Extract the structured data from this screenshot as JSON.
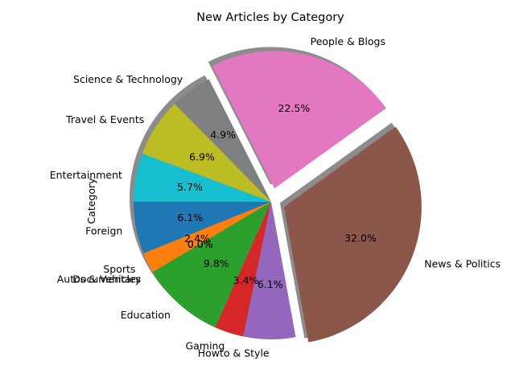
{
  "chart_data": {
    "type": "pie",
    "title": "New Articles by Category",
    "ylabel": "Category",
    "slices": [
      {
        "label": "Foreign",
        "value": 6.1,
        "pct_label": "6.1%",
        "color": "#1f77b4",
        "explode": 0
      },
      {
        "label": "Sports",
        "value": 2.4,
        "pct_label": "2.4%",
        "color": "#ff7f0e",
        "explode": 0
      },
      {
        "label": "Autos & Vehicles",
        "value": 0.0,
        "pct_label": "0.0%",
        "color": "#ff7f0e",
        "explode": 0
      },
      {
        "label": "Documentary",
        "value": 0.0,
        "pct_label": "0.0%",
        "color": "#1f77b4",
        "explode": 0
      },
      {
        "label": "Education",
        "value": 9.8,
        "pct_label": "9.8%",
        "color": "#2ca02c",
        "explode": 0
      },
      {
        "label": "Gaming",
        "value": 3.4,
        "pct_label": "3.4%",
        "color": "#d62728",
        "explode": 0
      },
      {
        "label": "Howto & Style",
        "value": 6.1,
        "pct_label": "6.1%",
        "color": "#9467bd",
        "explode": 0
      },
      {
        "label": "News & Politics",
        "value": 32.0,
        "pct_label": "32.0%",
        "color": "#8c564b",
        "explode": 0.1
      },
      {
        "label": "People & Blogs",
        "value": 22.5,
        "pct_label": "22.5%",
        "color": "#e377c2",
        "explode": 0.1
      },
      {
        "label": "Science & Technology",
        "value": 4.9,
        "pct_label": "4.9%",
        "color": "#7f7f7f",
        "explode": 0
      },
      {
        "label": "Travel & Events",
        "value": 6.9,
        "pct_label": "6.9%",
        "color": "#bcbd22",
        "explode": 0
      },
      {
        "label": "Entertainment",
        "value": 5.7,
        "pct_label": "5.7%",
        "color": "#17becf",
        "explode": 0
      }
    ],
    "start_angle_deg": 180,
    "direction": "counterclockwise",
    "shadow": true
  }
}
